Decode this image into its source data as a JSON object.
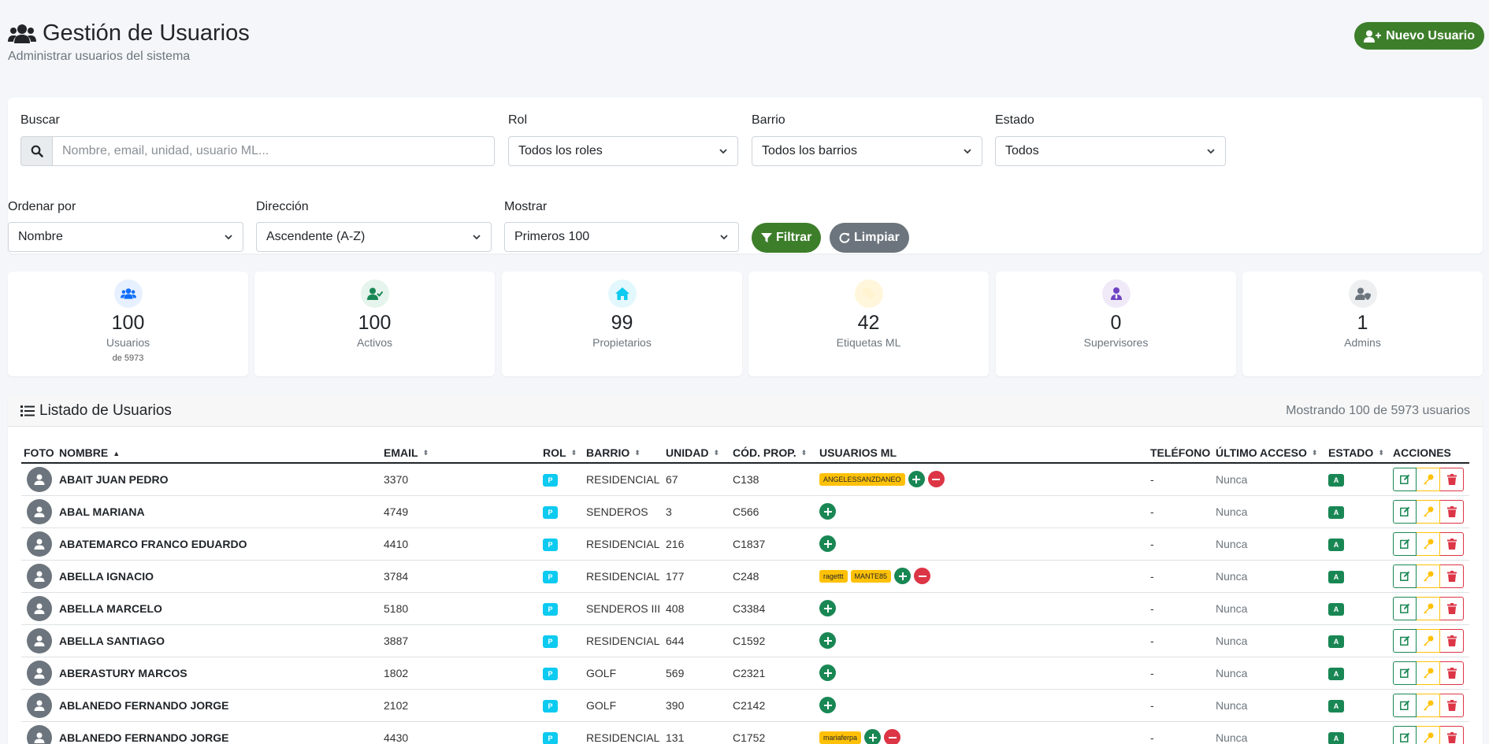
{
  "header": {
    "title": "Gestión de Usuarios",
    "subtitle": "Administrar usuarios del sistema",
    "new_user_label": "Nuevo Usuario"
  },
  "filters": {
    "search_label": "Buscar",
    "search_placeholder": "Nombre, email, unidad, usuario ML...",
    "role_label": "Rol",
    "role_value": "Todos los roles",
    "barrio_label": "Barrio",
    "barrio_value": "Todos los barrios",
    "state_label": "Estado",
    "state_value": "Todos",
    "order_label": "Ordenar por",
    "order_value": "Nombre",
    "direction_label": "Dirección",
    "direction_value": "Ascendente (A-Z)",
    "show_label": "Mostrar",
    "show_value": "Primeros 100",
    "filter_button": "Filtrar",
    "clear_button": "Limpiar"
  },
  "stats": [
    {
      "value": "100",
      "label": "Usuarios",
      "sub": "de 5973",
      "icon": "users-icon",
      "color": "#0d6efd",
      "bg": "#e7f0ff"
    },
    {
      "value": "100",
      "label": "Activos",
      "sub": "",
      "icon": "user-check-icon",
      "color": "#198754",
      "bg": "#e5f4ec"
    },
    {
      "value": "99",
      "label": "Propietarios",
      "sub": "",
      "icon": "home-icon",
      "color": "#0dcaf0",
      "bg": "#e3f8fc"
    },
    {
      "value": "42",
      "label": "Etiquetas ML",
      "sub": "",
      "icon": "tag-icon",
      "color": "#ffc107",
      "bg": "#fff6dc"
    },
    {
      "value": "0",
      "label": "Supervisores",
      "sub": "",
      "icon": "user-tie-icon",
      "color": "#6f42c1",
      "bg": "#efe9f8"
    },
    {
      "value": "1",
      "label": "Admins",
      "sub": "",
      "icon": "user-shield-icon",
      "color": "#6c757d",
      "bg": "#eeeff0"
    }
  ],
  "table": {
    "title": "Listado de Usuarios",
    "count_text": "Mostrando 100 de 5973 usuarios",
    "columns": [
      "FOTO",
      "NOMBRE",
      "EMAIL",
      "ROL",
      "BARRIO",
      "UNIDAD",
      "CÓD. PROP.",
      "USUARIOS ML",
      "TELÉFONO",
      "ÚLTIMO ACCESO",
      "ESTADO",
      "ACCIONES"
    ],
    "rows": [
      {
        "name": "ABAIT JUAN PEDRO",
        "email": "3370",
        "role": "P",
        "barrio": "RESIDENCIAL",
        "unit": "67",
        "code": "C138",
        "ml": [
          "ANGELESSANZDANEO"
        ],
        "phone": "-",
        "last": "Nunca",
        "state": "A"
      },
      {
        "name": "ABAL MARIANA",
        "email": "4749",
        "role": "P",
        "barrio": "SENDEROS",
        "unit": "3",
        "code": "C566",
        "ml": [],
        "phone": "-",
        "last": "Nunca",
        "state": "A"
      },
      {
        "name": "ABATEMARCO FRANCO EDUARDO",
        "email": "4410",
        "role": "P",
        "barrio": "RESIDENCIAL II",
        "unit": "216",
        "code": "C1837",
        "ml": [],
        "phone": "-",
        "last": "Nunca",
        "state": "A"
      },
      {
        "name": "ABELLA IGNACIO",
        "email": "3784",
        "role": "P",
        "barrio": "RESIDENCIAL",
        "unit": "177",
        "code": "C248",
        "ml": [
          "ragettt",
          "MANTE85"
        ],
        "phone": "-",
        "last": "Nunca",
        "state": "A"
      },
      {
        "name": "ABELLA MARCELO",
        "email": "5180",
        "role": "P",
        "barrio": "SENDEROS III",
        "unit": "408",
        "code": "C3384",
        "ml": [],
        "phone": "-",
        "last": "Nunca",
        "state": "A"
      },
      {
        "name": "ABELLA SANTIAGO",
        "email": "3887",
        "role": "P",
        "barrio": "RESIDENCIAL",
        "unit": "644",
        "code": "C1592",
        "ml": [],
        "phone": "-",
        "last": "Nunca",
        "state": "A"
      },
      {
        "name": "ABERASTURY MARCOS",
        "email": "1802",
        "role": "P",
        "barrio": "GOLF",
        "unit": "569",
        "code": "C2321",
        "ml": [],
        "phone": "-",
        "last": "Nunca",
        "state": "A"
      },
      {
        "name": "ABLANEDO FERNANDO JORGE",
        "email": "2102",
        "role": "P",
        "barrio": "GOLF",
        "unit": "390",
        "code": "C2142",
        "ml": [],
        "phone": "-",
        "last": "Nunca",
        "state": "A"
      },
      {
        "name": "ABLANEDO FERNANDO JORGE",
        "email": "4430",
        "role": "P",
        "barrio": "RESIDENCIAL II",
        "unit": "131",
        "code": "C1752",
        "ml": [
          "mariaferpa"
        ],
        "phone": "-",
        "last": "Nunca",
        "state": "A"
      }
    ]
  }
}
